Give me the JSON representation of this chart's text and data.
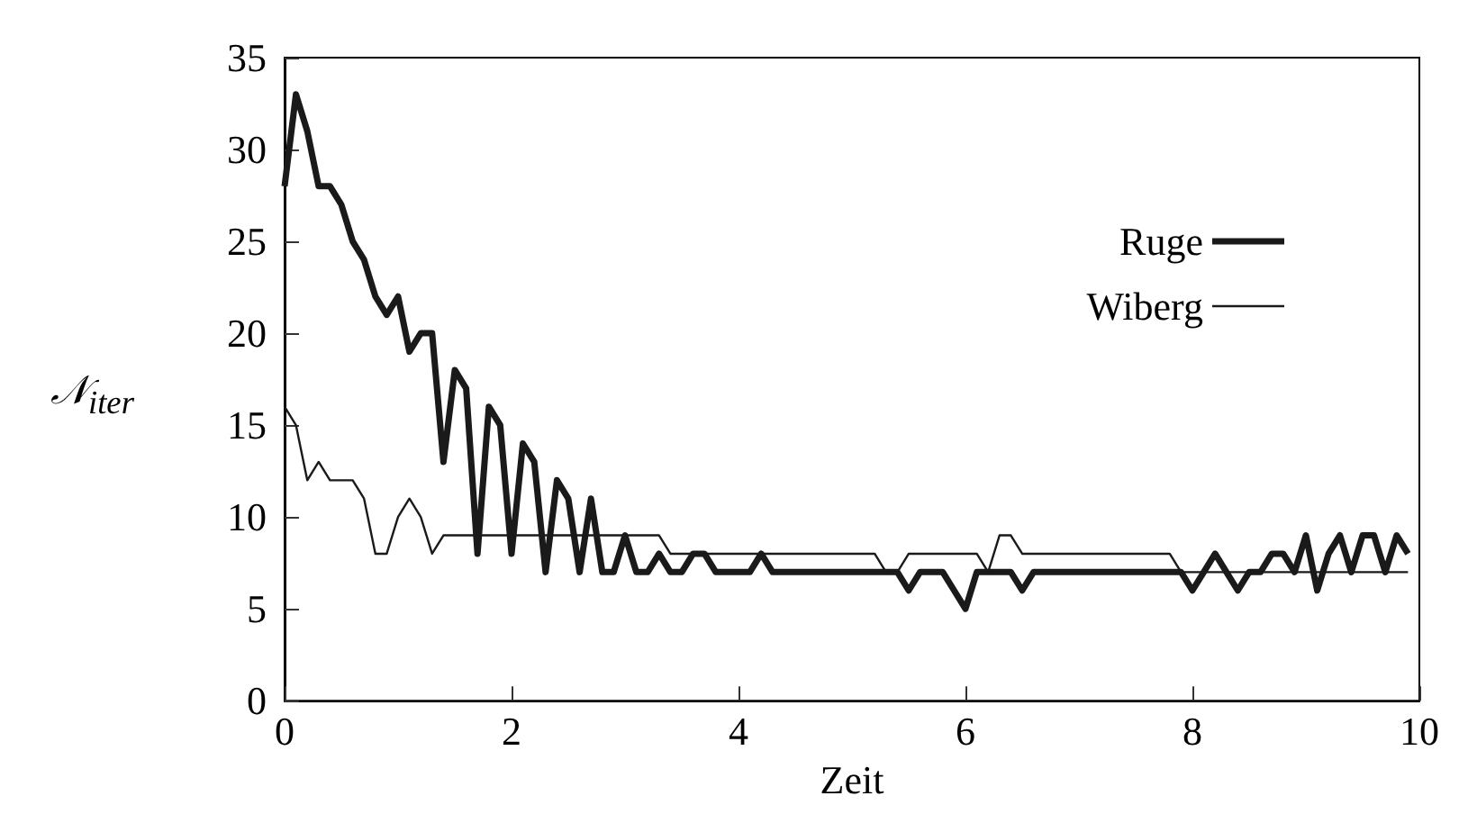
{
  "chart_data": {
    "type": "line",
    "xlabel": "Zeit",
    "ylabel": "𝒩$_{iter}$",
    "xlim": [
      0,
      10
    ],
    "xticks": [
      0,
      2,
      4,
      6,
      8,
      10
    ],
    "ylim": [
      0,
      35
    ],
    "yticks": [
      0,
      5,
      10,
      15,
      20,
      25,
      30,
      35
    ],
    "legend": "top right",
    "grid": false,
    "marker": "none",
    "line_style": "solid",
    "series": [
      {
        "name": "Ruge",
        "color": "#1a1a1a",
        "x": [
          0,
          0.1,
          0.2,
          0.3,
          0.4,
          0.5,
          0.6,
          0.7,
          0.8,
          0.9,
          1.0,
          1.1,
          1.2,
          1.3,
          1.4,
          1.5,
          1.6,
          1.7,
          1.8,
          1.9,
          2.0,
          2.1,
          2.2,
          2.3,
          2.4,
          2.5,
          2.6,
          2.7,
          2.8,
          2.9,
          3.0,
          3.1,
          3.2,
          3.3,
          3.4,
          3.5,
          3.6,
          3.7,
          3.8,
          4.1,
          4.2,
          4.3,
          5.4,
          5.5,
          5.6,
          5.8,
          5.9,
          6.0,
          6.1,
          6.4,
          6.5,
          6.6,
          7.9,
          8.0,
          8.1,
          8.2,
          8.3,
          8.4,
          8.5,
          8.6,
          8.7,
          8.8,
          8.9,
          9.0,
          9.1,
          9.2,
          9.3,
          9.4,
          9.5,
          9.6,
          9.7,
          9.8,
          9.9
        ],
        "values": [
          28,
          33,
          31,
          28,
          28,
          27,
          25,
          24,
          22,
          21,
          22,
          19,
          20,
          20,
          13,
          18,
          17,
          8,
          16,
          15,
          8,
          14,
          13,
          7,
          12,
          11,
          7,
          11,
          7,
          7,
          9,
          7,
          7,
          8,
          7,
          7,
          8,
          8,
          7,
          7,
          8,
          7,
          7,
          6,
          7,
          7,
          6,
          5,
          7,
          7,
          6,
          7,
          7,
          6,
          7,
          8,
          7,
          6,
          7,
          7,
          8,
          8,
          7,
          9,
          6,
          8,
          9,
          7,
          9,
          9,
          7,
          9,
          8
        ]
      },
      {
        "name": "Wiberg",
        "color": "#1a1a1a",
        "x": [
          0,
          0.1,
          0.2,
          0.3,
          0.4,
          0.6,
          0.7,
          0.8,
          0.9,
          1.0,
          1.1,
          1.2,
          1.3,
          1.4,
          3.3,
          3.4,
          5.2,
          5.3,
          5.4,
          5.5,
          6.1,
          6.2,
          6.3,
          6.4,
          6.5,
          7.8,
          7.9,
          9.9
        ],
        "values": [
          16,
          15,
          12,
          13,
          12,
          12,
          11,
          8,
          8,
          10,
          11,
          10,
          8,
          9,
          9,
          8,
          8,
          7,
          7,
          8,
          8,
          7,
          9,
          9,
          8,
          8,
          7,
          7
        ]
      }
    ]
  }
}
